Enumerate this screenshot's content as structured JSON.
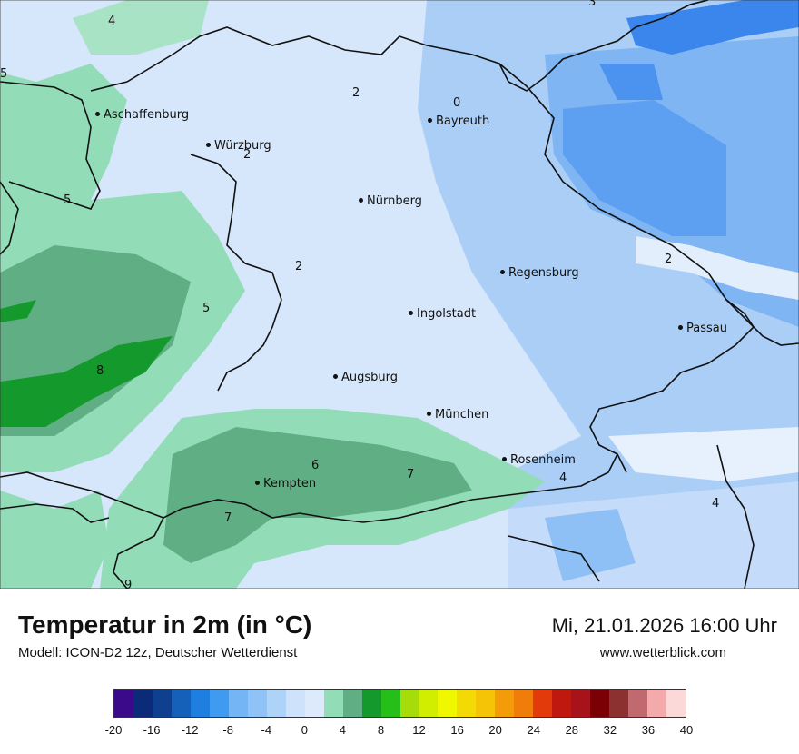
{
  "map": {
    "cities": [
      {
        "name": "Aschaffenburg"
      },
      {
        "name": "Würzburg"
      },
      {
        "name": "Bayreuth"
      },
      {
        "name": "Nürnberg"
      },
      {
        "name": "Regensburg"
      },
      {
        "name": "Ingolstadt"
      },
      {
        "name": "Passau"
      },
      {
        "name": "Augsburg"
      },
      {
        "name": "München"
      },
      {
        "name": "Rosenheim"
      },
      {
        "name": "Kempten"
      }
    ],
    "isolines": [
      "4",
      "3",
      "5",
      "2",
      "0",
      "2",
      "5",
      "2",
      "5",
      "8",
      "2",
      "6",
      "7",
      "4",
      "4",
      "7",
      "9"
    ]
  },
  "footer": {
    "title": "Temperatur in 2m (in °C)",
    "subtitle": "Modell: ICON-D2 12z, Deutscher Wetterdienst",
    "datetime": "Mi, 21.01.2026 16:00 Uhr",
    "website": "www.wetterblick.com"
  },
  "legend": {
    "colors": [
      "#3a0a8a",
      "#0b2a78",
      "#0f3f8f",
      "#1560b8",
      "#1e7fe0",
      "#3f9bf0",
      "#74b6f5",
      "#8fc3f7",
      "#aed3f8",
      "#cfe2fb",
      "#ddeafc",
      "#93dcb8",
      "#5fae84",
      "#149a2c",
      "#26be18",
      "#a6dc0a",
      "#d2ee00",
      "#f0f800",
      "#f3da04",
      "#f5c406",
      "#f39b08",
      "#f07d0a",
      "#e23a0a",
      "#be180f",
      "#a8121a",
      "#7a0006",
      "#8c3030",
      "#c06a70",
      "#f4aaaa",
      "#fcd9d9"
    ],
    "ticks": [
      "-20",
      "-16",
      "-12",
      "-8",
      "-4",
      "0",
      "4",
      "8",
      "12",
      "16",
      "20",
      "24",
      "28",
      "32",
      "36",
      "40"
    ]
  }
}
